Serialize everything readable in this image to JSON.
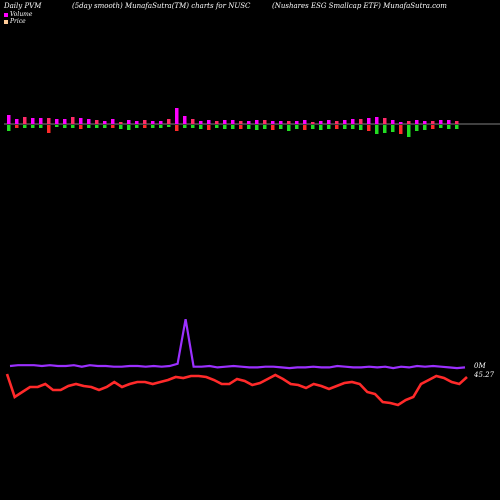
{
  "chart_data": {
    "type": "bar",
    "title_left": "Daily PVM",
    "title_mid": "(5day smooth) MunafaSutra(TM) charts for NUSC",
    "title_right": "(Nushares ESG Smallcap ETF) MunafaSutra.com",
    "legend": [
      {
        "name": "Volume",
        "color": "#ff00ff"
      },
      {
        "name": "Price",
        "color": "#ffcc99"
      }
    ],
    "volume_series": {
      "name": "Volume",
      "up": [
        9,
        5,
        7,
        6,
        6,
        6,
        5,
        5,
        7,
        6,
        5,
        4,
        3,
        5,
        2,
        4,
        3,
        4,
        3,
        3,
        5,
        16,
        8,
        5,
        3,
        4,
        3,
        4,
        4,
        3,
        3,
        4,
        4,
        3,
        3,
        3,
        3,
        4,
        2,
        3,
        4,
        3,
        4,
        5,
        5,
        6,
        7,
        6,
        4,
        2,
        3,
        4,
        3,
        3,
        4,
        4,
        3
      ],
      "down": [
        6,
        3,
        3,
        3,
        3,
        8,
        2,
        3,
        3,
        4,
        3,
        3,
        3,
        3,
        4,
        5,
        3,
        3,
        3,
        3,
        2,
        6,
        3,
        3,
        4,
        5,
        3,
        4,
        4,
        4,
        4,
        5,
        4,
        5,
        4,
        6,
        4,
        5,
        4,
        5,
        4,
        4,
        4,
        4,
        5,
        6,
        9,
        8,
        7,
        9,
        12,
        6,
        5,
        4,
        3,
        4,
        4
      ]
    },
    "volume_line": {
      "name": "Volume",
      "color": "#9b30ff",
      "values": [
        7,
        8,
        8,
        8,
        7,
        8,
        7,
        7,
        8,
        6,
        8,
        7,
        7,
        6,
        6,
        7,
        7,
        6,
        7,
        6,
        7,
        10,
        72,
        6,
        6,
        7,
        5,
        6,
        7,
        6,
        5,
        5,
        6,
        6,
        5,
        4,
        5,
        5,
        6,
        5,
        5,
        7,
        6,
        5,
        5,
        6,
        5,
        6,
        4,
        6,
        5,
        7,
        6,
        7,
        6,
        5,
        4,
        5
      ]
    },
    "price_line": {
      "name": "Price",
      "color": "#ff2a2a",
      "values": [
        -2,
        -25,
        -20,
        -15,
        -15,
        -12,
        -18,
        -18,
        -14,
        -12,
        -14,
        -15,
        -18,
        -15,
        -10,
        -15,
        -12,
        -10,
        -10,
        -12,
        -10,
        -8,
        -5,
        -6,
        -4,
        -4,
        -5,
        -8,
        -12,
        -12,
        -7,
        -9,
        -13,
        -11,
        -7,
        -3,
        -7,
        -12,
        -13,
        -16,
        -12,
        -14,
        -17,
        -14,
        -11,
        -10,
        -12,
        -20,
        -22,
        -30,
        -31,
        -33,
        -28,
        -25,
        -12,
        -8,
        -4,
        -6,
        -10,
        -12,
        -5
      ]
    },
    "labels": {
      "volume_end": "0M",
      "price_end": "45.27"
    }
  }
}
